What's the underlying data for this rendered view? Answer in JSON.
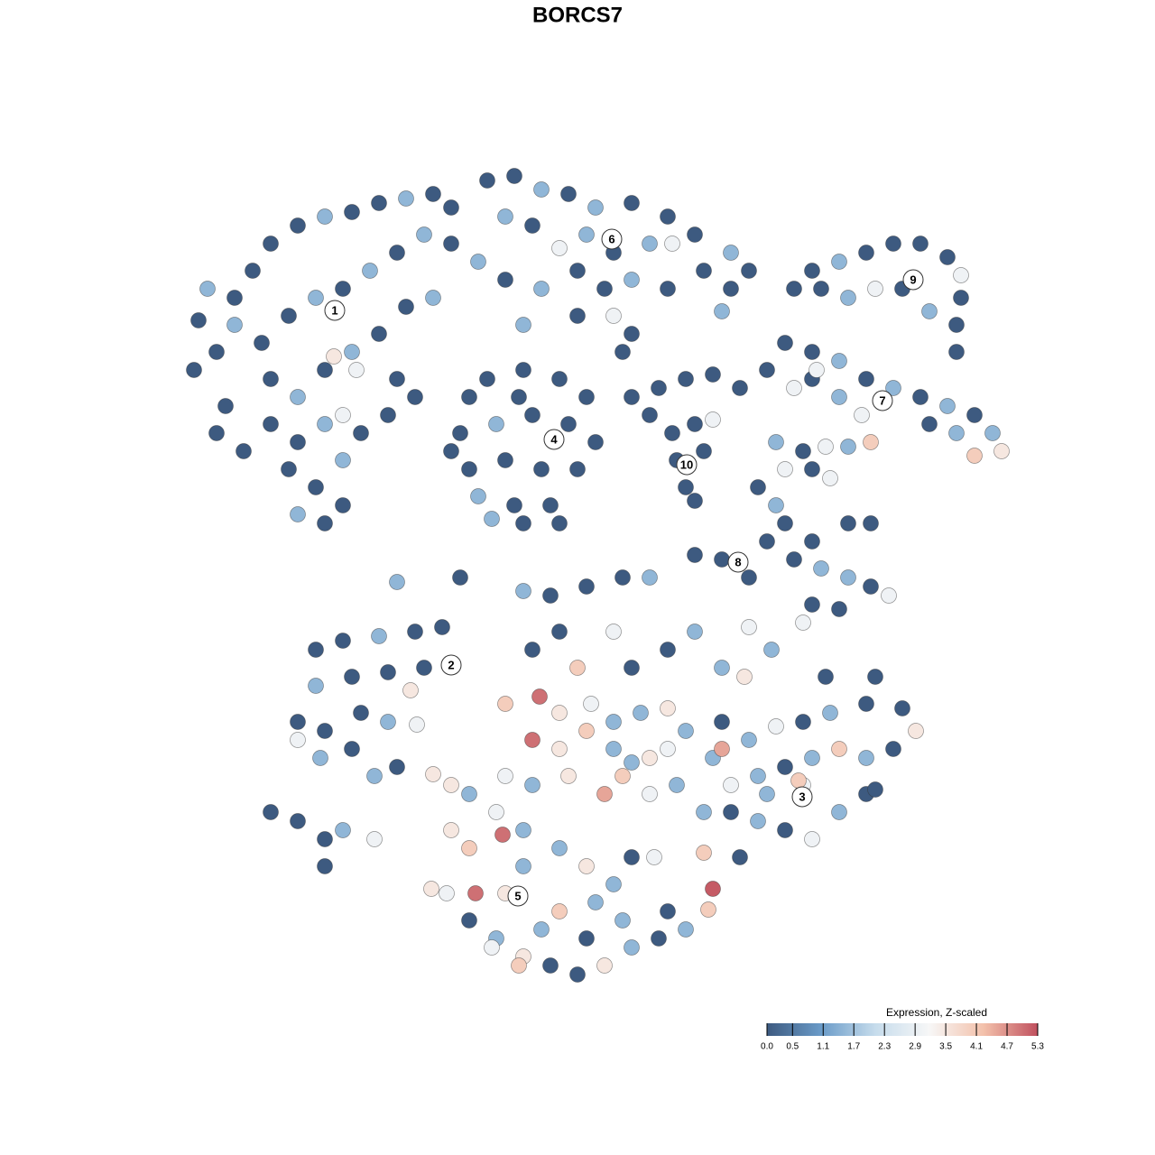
{
  "chart_data": {
    "type": "scatter",
    "title": "BORCS7",
    "xlim": [
      0,
      1280
    ],
    "ylim": [
      1280,
      0
    ],
    "x": [
      230,
      220,
      215,
      240,
      260,
      280,
      300,
      330,
      360,
      390,
      420,
      450,
      480,
      500,
      260,
      290,
      320,
      350,
      380,
      410,
      440,
      470,
      500,
      300,
      330,
      360,
      390,
      420,
      450,
      480,
      370,
      395,
      300,
      330,
      360,
      380,
      400,
      320,
      350,
      380,
      330,
      360,
      380,
      250,
      240,
      270,
      440,
      460,
      430,
      520,
      540,
      580,
      620,
      650,
      510,
      550,
      590,
      630,
      660,
      520,
      560,
      600,
      640,
      530,
      570,
      610,
      545,
      580,
      620,
      500,
      575,
      540,
      570,
      600,
      630,
      660,
      700,
      740,
      770,
      810,
      830,
      560,
      590,
      620,
      650,
      680,
      720,
      745,
      780,
      810,
      530,
      560,
      600,
      640,
      670,
      700,
      740,
      800,
      680,
      700,
      690,
      640,
      580,
      700,
      730,
      760,
      790,
      820,
      745,
      770,
      790,
      750,
      780,
      760,
      770,
      720,
      870,
      900,
      930,
      960,
      990,
      1020,
      1050,
      1080,
      1100,
      1110,
      1080,
      1060,
      1030,
      900,
      930,
      955,
      880,
      850,
      905,
      900,
      930,
      960,
      990,
      1020,
      1050,
      1065,
      1065,
      1060,
      1030,
      1000,
      970,
      940,
      910,
      880,
      1060,
      860,
      890,
      915,
      940,
      965,
      870,
      900,
      920,
      840,
      860,
      870,
      850,
      900,
      940,
      965,
      880,
      910,
      940,
      965,
      985,
      900,
      930,
      890,
      800,
      770,
      830,
      350,
      380,
      420,
      460,
      490,
      350,
      390,
      430,
      470,
      330,
      360,
      400,
      430,
      330,
      355,
      390,
      415,
      440,
      300,
      330,
      360,
      380,
      415,
      360,
      440,
      510,
      580,
      455,
      480,
      462,
      800,
      830,
      860,
      890,
      920,
      960,
      1000,
      1015,
      990,
      960,
      930,
      900,
      870,
      840,
      810,
      790,
      780,
      810,
      840,
      870,
      900,
      930,
      960,
      970,
      890,
      850,
      885,
      800,
      820,
      790,
      780,
      785,
      970,
      915,
      855,
      830,
      610,
      650,
      690,
      720,
      680,
      620,
      590,
      640,
      700,
      740,
      770,
      800,
      825,
      560,
      598,
      620,
      655,
      680,
      710,
      740,
      760,
      590,
      620,
      650,
      680,
      700,
      720,
      740,
      560,
      590,
      630,
      670,
      690,
      720,
      750,
      500,
      520,
      550,
      580,
      620,
      650,
      680,
      700,
      725,
      500,
      520,
      557,
      580,
      560,
      527,
      495,
      478,
      520,
      550,
      580,
      610,
      640,
      670,
      700,
      730,
      760,
      660,
      620,
      600,
      650,
      690,
      740,
      575,
      545
    ],
    "y": [
      320,
      355,
      410,
      390,
      330,
      300,
      270,
      250,
      240,
      235,
      225,
      220,
      215,
      230,
      360,
      380,
      350,
      330,
      320,
      300,
      280,
      260,
      270,
      420,
      440,
      410,
      390,
      370,
      340,
      330,
      395,
      410,
      470,
      490,
      470,
      460,
      480,
      520,
      540,
      510,
      570,
      580,
      560,
      450,
      480,
      500,
      420,
      440,
      460,
      440,
      420,
      410,
      420,
      440,
      480,
      470,
      460,
      470,
      490,
      520,
      510,
      520,
      520,
      550,
      560,
      560,
      575,
      580,
      580,
      500,
      440,
      200,
      195,
      210,
      215,
      230,
      225,
      240,
      260,
      280,
      300,
      240,
      250,
      275,
      260,
      280,
      270,
      270,
      300,
      320,
      290,
      310,
      320,
      300,
      320,
      310,
      320,
      345,
      350,
      370,
      390,
      350,
      360,
      440,
      430,
      420,
      415,
      430,
      480,
      470,
      465,
      510,
      500,
      540,
      555,
      460,
      380,
      390,
      400,
      420,
      430,
      440,
      450,
      460,
      480,
      500,
      505,
      480,
      470,
      420,
      440,
      460,
      430,
      410,
      410,
      300,
      290,
      280,
      270,
      270,
      285,
      305,
      330,
      360,
      345,
      320,
      320,
      330,
      320,
      320,
      390,
      490,
      500,
      495,
      495,
      490,
      520,
      520,
      530,
      540,
      560,
      580,
      600,
      600,
      580,
      580,
      620,
      630,
      640,
      650,
      660,
      670,
      675,
      690,
      620,
      615,
      640,
      720,
      710,
      705,
      700,
      695,
      760,
      750,
      745,
      740,
      800,
      810,
      790,
      800,
      820,
      840,
      830,
      860,
      850,
      900,
      910,
      930,
      920,
      930,
      960,
      645,
      640,
      655,
      765,
      858,
      803,
      800,
      820,
      805,
      800,
      790,
      780,
      785,
      810,
      830,
      840,
      830,
      840,
      850,
      860,
      870,
      840,
      900,
      900,
      910,
      920,
      930,
      900,
      880,
      875,
      870,
      880,
      865,
      830,
      950,
      985,
      945,
      1008,
      750,
      750,
      720,
      695,
      660,
      650,
      640,
      640,
      700,
      700,
      720,
      740,
      740,
      720,
      700,
      740,
      750,
      780,
      772,
      790,
      780,
      800,
      790,
      785,
      810,
      820,
      830,
      810,
      830,
      845,
      840,
      830,
      860,
      870,
      860,
      880,
      860,
      880,
      870,
      870,
      880,
      900,
      920,
      940,
      960,
      980,
      950,
      950,
      920,
      940,
      925,
      960,
      990,
      990,
      990,
      985,
      1020,
      1040,
      1060,
      1070,
      1080,
      1070,
      1050,
      1040,
      1030,
      1000,
      1010,
      1030,
      1040,
      1020,
      1010,
      1070,
      1050
    ],
    "values": [
      1.5,
      0,
      0,
      0,
      0,
      0,
      0,
      0,
      1.5,
      0,
      0,
      1.5,
      0,
      0,
      1.5,
      0,
      0,
      1.5,
      0,
      1.5,
      0,
      1.5,
      0,
      0,
      1.5,
      0,
      1.5,
      0,
      0,
      1.5,
      3.5,
      3,
      0,
      0,
      1.5,
      3,
      0,
      0,
      0,
      1.5,
      1.5,
      0,
      0,
      0,
      0,
      0,
      0,
      0,
      0,
      0,
      0,
      0,
      0,
      0,
      0,
      1.5,
      0,
      0,
      0,
      0,
      0,
      0,
      0,
      1.5,
      0,
      0,
      1.5,
      0,
      0,
      0,
      0,
      0,
      0,
      1.5,
      0,
      1.5,
      0,
      0,
      0,
      1.5,
      0,
      1.5,
      0,
      3,
      1.5,
      0,
      1.5,
      3,
      0,
      0,
      1.5,
      0,
      1.5,
      0,
      0,
      1.5,
      0,
      1.5,
      3,
      0,
      0,
      0,
      1.5,
      0,
      0,
      0,
      0,
      0,
      0,
      0,
      3,
      0,
      0,
      0,
      0,
      0,
      0,
      0,
      1.5,
      0,
      1.5,
      0,
      1.5,
      0,
      1.5,
      3.5,
      4,
      1.5,
      0,
      0,
      1.5,
      3,
      3,
      0,
      3,
      0,
      1.5,
      0,
      0,
      0,
      0,
      3,
      0,
      0,
      1.5,
      0,
      3,
      1.5,
      0,
      0,
      0,
      1.5,
      0,
      3,
      1.5,
      4,
      3,
      0,
      3,
      0,
      1.5,
      0,
      0,
      0,
      0,
      0,
      0,
      1.5,
      1.5,
      0,
      3,
      0,
      0,
      3,
      0,
      0,
      0,
      0,
      0,
      1.5,
      0,
      0,
      1.5,
      0,
      0,
      0,
      0,
      0,
      0,
      1.5,
      3,
      1.5,
      0,
      1.5,
      0,
      0,
      0,
      0,
      1.5,
      3,
      0,
      1.5,
      0,
      1.5,
      3.5,
      3.5,
      3,
      0,
      1.5,
      3,
      0,
      1.5,
      0,
      0,
      3.5,
      0,
      1.5,
      4,
      1.5,
      0,
      1.5,
      3,
      1.5,
      1.5,
      0,
      1.5,
      0,
      3,
      1.5,
      0,
      0,
      3,
      1.5,
      4,
      4.5,
      0,
      5.2,
      4,
      4,
      0,
      0,
      1.5,
      3,
      0,
      0,
      0,
      1.5,
      3,
      0,
      0,
      4,
      0,
      0,
      1.5,
      1.5,
      3.5,
      4,
      5,
      3.5,
      3,
      1.5,
      1.5,
      3.5,
      1.5,
      5,
      3.5,
      4,
      1.5,
      1.5,
      3.5,
      3,
      3,
      1.5,
      3.5,
      4.5,
      4,
      3,
      1.5,
      3.5,
      1.5,
      3,
      1.5,
      1.5,
      3.5,
      1.5,
      0,
      3,
      3.5,
      4,
      5,
      1.5,
      3.5,
      5,
      3,
      3.5,
      0,
      1.5,
      3.5,
      0,
      0,
      3.5,
      1.5,
      0,
      1.5,
      1.5,
      4,
      1.5,
      0,
      1.5,
      0,
      4,
      3
    ],
    "colors": [
      "#3d5a80",
      "#6a9bc8",
      "#c6dcec",
      "#f7f7f7",
      "#f3c1ab",
      "#c0505e"
    ],
    "clim": [
      0,
      5.3
    ],
    "colorbar_title": "Expression, Z-scaled",
    "colorbar_ticks": [
      {
        "value": 0,
        "label": "0.0"
      },
      0.5,
      1.1,
      1.7,
      2.3,
      2.9,
      3.5,
      4.1,
      4.7,
      5.3
    ],
    "labels": [
      {
        "text": "1",
        "x": 371,
        "y": 344
      },
      {
        "text": "2",
        "x": 500,
        "y": 737
      },
      {
        "text": "3",
        "x": 889,
        "y": 883
      },
      {
        "text": "4",
        "x": 614,
        "y": 487
      },
      {
        "text": "5",
        "x": 574,
        "y": 993
      },
      {
        "text": "6",
        "x": 678,
        "y": 265
      },
      {
        "text": "7",
        "x": 978,
        "y": 444
      },
      {
        "text": "8",
        "x": 818,
        "y": 623
      },
      {
        "text": "9",
        "x": 1012,
        "y": 310
      },
      {
        "text": "10",
        "x": 761,
        "y": 515
      }
    ]
  }
}
